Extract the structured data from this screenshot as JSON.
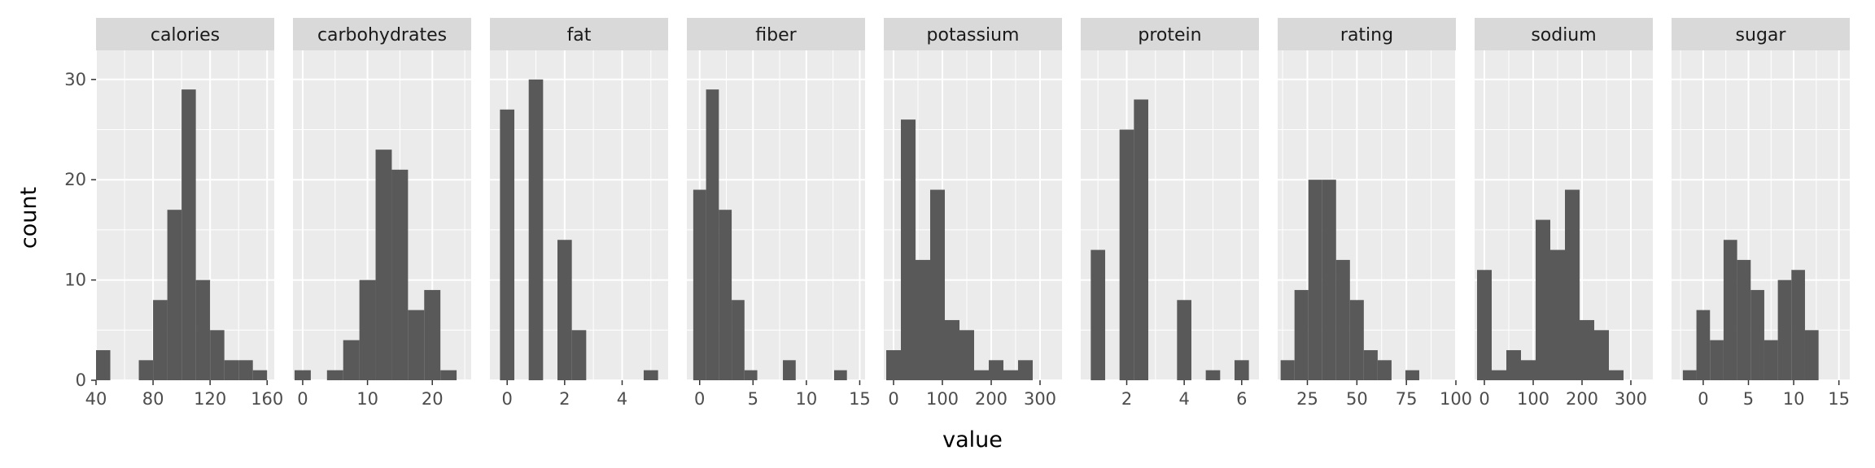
{
  "chart_data": {
    "type": "bar",
    "facet_wrap": true,
    "xlabel": "value",
    "ylabel": "count",
    "ylim": [
      0,
      32.9
    ],
    "yticks": [
      0,
      10,
      20,
      30
    ],
    "grid": true,
    "colors": {
      "panel_background": "#ebebeb",
      "strip_background": "#d9d9d9",
      "grid": "#ffffff",
      "bar": "#595959"
    },
    "facets": [
      {
        "name": "calories",
        "xlim": [
          40,
          165
        ],
        "xticks": [
          40,
          80,
          120,
          160
        ],
        "bins": [
          [
            45,
            3
          ],
          [
            55,
            0
          ],
          [
            65,
            0
          ],
          [
            75,
            2
          ],
          [
            85,
            8
          ],
          [
            95,
            17
          ],
          [
            105,
            29
          ],
          [
            115,
            10
          ],
          [
            125,
            5
          ],
          [
            135,
            2
          ],
          [
            145,
            2
          ],
          [
            155,
            1
          ]
        ],
        "bin_width": 10
      },
      {
        "name": "carbohydrates",
        "xlim": [
          -1.5,
          26
        ],
        "xticks": [
          0,
          10,
          20
        ],
        "bins": [
          [
            0,
            1
          ],
          [
            2.5,
            0
          ],
          [
            5,
            1
          ],
          [
            7.5,
            4
          ],
          [
            10,
            10
          ],
          [
            12.5,
            23
          ],
          [
            15,
            21
          ],
          [
            17.5,
            7
          ],
          [
            20,
            9
          ],
          [
            22.5,
            1
          ]
        ],
        "bin_width": 2.5
      },
      {
        "name": "fat",
        "xlim": [
          -0.6,
          5.6
        ],
        "xticks": [
          0,
          2,
          4
        ],
        "bins": [
          [
            0,
            27
          ],
          [
            0.5,
            0
          ],
          [
            1,
            30
          ],
          [
            1.5,
            0
          ],
          [
            2,
            14
          ],
          [
            2.5,
            5
          ],
          [
            3,
            0
          ],
          [
            3.5,
            0
          ],
          [
            4,
            0
          ],
          [
            4.5,
            0
          ],
          [
            5,
            1
          ]
        ],
        "bin_width": 0.5
      },
      {
        "name": "fiber",
        "xlim": [
          -1.2,
          15.5
        ],
        "xticks": [
          0,
          5,
          10,
          15
        ],
        "bins": [
          [
            0,
            19
          ],
          [
            1.2,
            29
          ],
          [
            2.4,
            17
          ],
          [
            3.6,
            8
          ],
          [
            4.8,
            1
          ],
          [
            6,
            0
          ],
          [
            7.2,
            0
          ],
          [
            8.4,
            2
          ],
          [
            9.6,
            0
          ],
          [
            10.8,
            0
          ],
          [
            12,
            0
          ],
          [
            13.2,
            1
          ]
        ],
        "bin_width": 1.2
      },
      {
        "name": "potassium",
        "xlim": [
          -20,
          345
        ],
        "xticks": [
          0,
          100,
          200,
          300
        ],
        "bins": [
          [
            0,
            3
          ],
          [
            30,
            26
          ],
          [
            60,
            12
          ],
          [
            90,
            19
          ],
          [
            120,
            6
          ],
          [
            150,
            5
          ],
          [
            180,
            1
          ],
          [
            210,
            2
          ],
          [
            240,
            1
          ],
          [
            270,
            2
          ]
        ],
        "bin_width": 30
      },
      {
        "name": "protein",
        "xlim": [
          0.4,
          6.6
        ],
        "xticks": [
          2,
          4,
          6
        ],
        "bins": [
          [
            1,
            13
          ],
          [
            1.5,
            0
          ],
          [
            2,
            25
          ],
          [
            2.5,
            28
          ],
          [
            3,
            0
          ],
          [
            3.5,
            0
          ],
          [
            4,
            8
          ],
          [
            4.5,
            0
          ],
          [
            5,
            1
          ],
          [
            5.5,
            0
          ],
          [
            6,
            2
          ]
        ],
        "bin_width": 0.5
      },
      {
        "name": "rating",
        "xlim": [
          10,
          100
        ],
        "xticks": [
          25,
          50,
          75,
          100
        ],
        "bins": [
          [
            15,
            2
          ],
          [
            22,
            9
          ],
          [
            29,
            20
          ],
          [
            36,
            20
          ],
          [
            43,
            12
          ],
          [
            50,
            8
          ],
          [
            57,
            3
          ],
          [
            64,
            2
          ],
          [
            71,
            0
          ],
          [
            78,
            1
          ]
        ],
        "bin_width": 7
      },
      {
        "name": "sodium",
        "xlim": [
          -20,
          345
        ],
        "xticks": [
          0,
          100,
          200,
          300
        ],
        "bins": [
          [
            0,
            11
          ],
          [
            30,
            1
          ],
          [
            60,
            3
          ],
          [
            90,
            2
          ],
          [
            120,
            16
          ],
          [
            150,
            13
          ],
          [
            180,
            19
          ],
          [
            210,
            6
          ],
          [
            240,
            5
          ],
          [
            270,
            1
          ]
        ],
        "bin_width": 30
      },
      {
        "name": "sugar",
        "xlim": [
          -3.5,
          16.2
        ],
        "xticks": [
          0,
          5,
          10,
          15
        ],
        "bins": [
          [
            -1.5,
            1
          ],
          [
            0,
            7
          ],
          [
            1.5,
            4
          ],
          [
            3,
            14
          ],
          [
            4.5,
            12
          ],
          [
            6,
            9
          ],
          [
            7.5,
            4
          ],
          [
            9,
            10
          ],
          [
            10.5,
            11
          ],
          [
            12,
            5
          ]
        ],
        "bin_width": 1.5
      }
    ]
  }
}
